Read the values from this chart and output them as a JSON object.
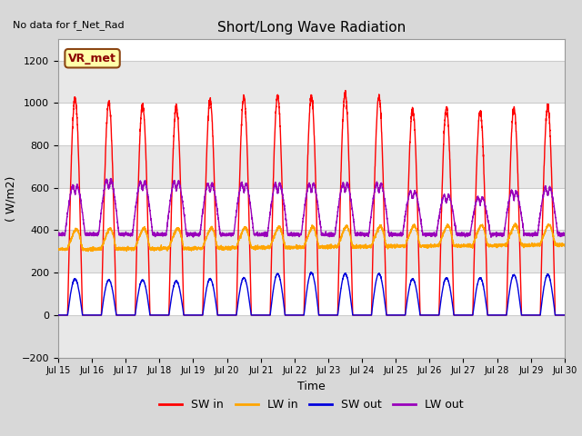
{
  "title": "Short/Long Wave Radiation",
  "xlabel": "Time",
  "ylabel": "( W/m2)",
  "ylim": [
    -200,
    1300
  ],
  "yticks": [
    -200,
    0,
    200,
    400,
    600,
    800,
    1000,
    1200
  ],
  "xlim": [
    0,
    15
  ],
  "xtick_labels": [
    "Jul 15",
    "Jul 16",
    "Jul 17",
    "Jul 18",
    "Jul 19",
    "Jul 20",
    "Jul 21",
    "Jul 22",
    "Jul 23",
    "Jul 24",
    "Jul 25",
    "Jul 26",
    "Jul 27",
    "Jul 28",
    "Jul 29",
    "Jul 30"
  ],
  "no_data_text": "No data for f_Net_Rad",
  "annotation_text": "VR_met",
  "colors": {
    "SW_in": "#ff0000",
    "LW_in": "#ffa500",
    "SW_out": "#0000dd",
    "LW_out": "#9900bb"
  },
  "legend_labels": [
    "SW in",
    "LW in",
    "SW out",
    "LW out"
  ],
  "fig_bg_color": "#d8d8d8",
  "plot_bg_color": "#ffffff",
  "grid_color": "#cccccc",
  "num_days": 15,
  "points_per_day": 288,
  "sw_peaks": [
    1020,
    1000,
    990,
    980,
    1010,
    1025,
    1035,
    1030,
    1045,
    1030,
    970,
    975,
    960,
    975,
    980
  ],
  "sw_out_peaks": [
    170,
    165,
    165,
    160,
    170,
    175,
    195,
    200,
    195,
    195,
    170,
    175,
    175,
    190,
    190
  ],
  "lw_out_peaks": [
    630,
    660,
    650,
    650,
    640,
    640,
    640,
    640,
    640,
    640,
    600,
    580,
    570,
    600,
    620
  ],
  "lw_in_base": 310,
  "lw_out_base": 380
}
